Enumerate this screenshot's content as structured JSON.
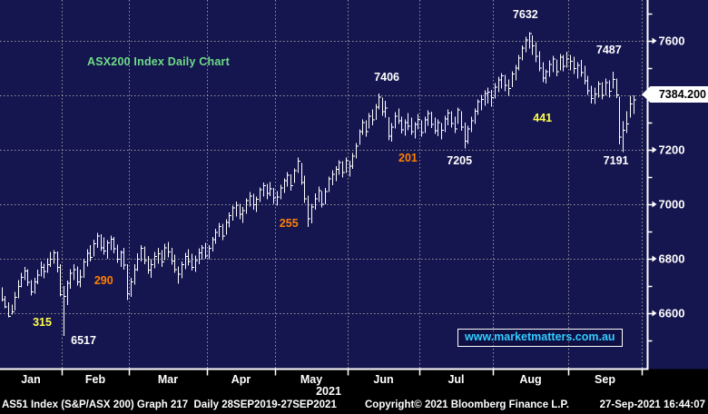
{
  "title": {
    "text": "ASX200 Index Daily Chart"
  },
  "watermark": {
    "text": "www.marketmatters.com.au"
  },
  "price_badge": {
    "label": "7384.200"
  },
  "status_bar": {
    "left": "AS51 Index (S&P/ASX 200) Graph 217  Daily 28SEP2019-27SEP2021",
    "center": "Copyright© 2021 Bloomberg Finance L.P.",
    "right": "27-Sep-2021 16:44:07"
  },
  "theme": {
    "background": "#15154f",
    "panel_black": "#000000",
    "bar_white": "#ffffff",
    "grid_gray": "#9a9a9a",
    "axis_white": "#ffffff",
    "title_green": "#6edc86",
    "annotation_yellow": "#ffff4d",
    "annotation_orange": "#ff8000",
    "link_cyan": "#33ccff",
    "badge_bg": "#ffffff",
    "badge_text": "#000000"
  },
  "chart_data": {
    "type": "bar",
    "subtype": "daily-ohlc-bars",
    "title": "ASX200 Index Daily Chart",
    "last_price": 7384.2,
    "grid": true,
    "legend_position": "none",
    "x_axis": {
      "months": [
        "Jan",
        "Feb",
        "Mar",
        "Apr",
        "May",
        "Jun",
        "Jul",
        "Aug",
        "Sep"
      ],
      "year": "2021",
      "days_per_month": [
        19,
        20,
        23,
        20,
        21,
        22,
        22,
        22,
        19
      ],
      "total_days": 188
    },
    "y_axis": {
      "side": "right",
      "min": 6400,
      "max": 7750,
      "labeled_ticks": [
        7600,
        7400,
        7200,
        7000,
        6800,
        6600
      ],
      "minor_ticks": [
        7700,
        7500,
        7300,
        7100,
        6900,
        6700,
        6500
      ]
    },
    "annotations": [
      {
        "text": "7632",
        "color": "white",
        "day": 156,
        "value": 7698
      },
      {
        "text": "7487",
        "color": "white",
        "day": 180,
        "value": 7568
      },
      {
        "text": "7406",
        "color": "white",
        "day": 114.5,
        "value": 7468
      },
      {
        "text": "7205",
        "color": "white",
        "day": 136.5,
        "value": 7162
      },
      {
        "text": "7191",
        "color": "white",
        "day": 182,
        "value": 7162
      },
      {
        "text": "6517",
        "color": "white",
        "day": 25,
        "value": 6502
      },
      {
        "text": "441",
        "color": "yellow",
        "day": 161,
        "value": 7318
      },
      {
        "text": "201",
        "color": "orange",
        "day": 121,
        "value": 7172
      },
      {
        "text": "255",
        "color": "orange",
        "day": 85.5,
        "value": 6932
      },
      {
        "text": "290",
        "color": "orange",
        "day": 31,
        "value": 6722
      },
      {
        "text": "315",
        "color": "yellow",
        "day": 12.5,
        "value": 6568
      }
    ],
    "bars_hlc": [
      [
        6695,
        6643,
        6652
      ],
      [
        6663,
        6618,
        6625
      ],
      [
        6640,
        6585,
        6590
      ],
      [
        6632,
        6595,
        6607
      ],
      [
        6678,
        6610,
        6660
      ],
      [
        6722,
        6655,
        6700
      ],
      [
        6748,
        6695,
        6733
      ],
      [
        6770,
        6722,
        6757
      ],
      [
        6762,
        6700,
        6715
      ],
      [
        6722,
        6665,
        6680
      ],
      [
        6730,
        6672,
        6716
      ],
      [
        6760,
        6706,
        6742
      ],
      [
        6790,
        6735,
        6770
      ],
      [
        6782,
        6728,
        6755
      ],
      [
        6802,
        6748,
        6780
      ],
      [
        6825,
        6770,
        6800
      ],
      [
        6832,
        6782,
        6824
      ],
      [
        6826,
        6750,
        6770
      ],
      [
        6780,
        6662,
        6670
      ],
      [
        6700,
        6517,
        6663
      ],
      [
        6720,
        6630,
        6712
      ],
      [
        6762,
        6690,
        6748
      ],
      [
        6780,
        6722,
        6762
      ],
      [
        6772,
        6702,
        6717
      ],
      [
        6760,
        6695,
        6735
      ],
      [
        6800,
        6730,
        6790
      ],
      [
        6835,
        6772,
        6821
      ],
      [
        6850,
        6790,
        6807
      ],
      [
        6870,
        6808,
        6856
      ],
      [
        6895,
        6840,
        6885
      ],
      [
        6890,
        6828,
        6842
      ],
      [
        6878,
        6815,
        6830
      ],
      [
        6868,
        6800,
        6860
      ],
      [
        6885,
        6832,
        6873
      ],
      [
        6880,
        6820,
        6838
      ],
      [
        6852,
        6785,
        6800
      ],
      [
        6830,
        6770,
        6825
      ],
      [
        6840,
        6760,
        6778
      ],
      [
        6780,
        6648,
        6673
      ],
      [
        6730,
        6660,
        6717
      ],
      [
        6780,
        6705,
        6762
      ],
      [
        6820,
        6755,
        6800
      ],
      [
        6850,
        6790,
        6840
      ],
      [
        6845,
        6780,
        6795
      ],
      [
        6810,
        6745,
        6760
      ],
      [
        6798,
        6730,
        6780
      ],
      [
        6825,
        6765,
        6810
      ],
      [
        6840,
        6782,
        6820
      ],
      [
        6832,
        6770,
        6790
      ],
      [
        6855,
        6795,
        6842
      ],
      [
        6862,
        6805,
        6827
      ],
      [
        6840,
        6778,
        6793
      ],
      [
        6815,
        6748,
        6762
      ],
      [
        6772,
        6708,
        6745
      ],
      [
        6790,
        6728,
        6780
      ],
      [
        6822,
        6762,
        6810
      ],
      [
        6835,
        6775,
        6792
      ],
      [
        6818,
        6756,
        6770
      ],
      [
        6812,
        6752,
        6795
      ],
      [
        6838,
        6780,
        6824
      ],
      [
        6850,
        6796,
        6842
      ],
      [
        6858,
        6800,
        6812
      ],
      [
        6850,
        6798,
        6840
      ],
      [
        6880,
        6826,
        6872
      ],
      [
        6910,
        6855,
        6898
      ],
      [
        6932,
        6880,
        6920
      ],
      [
        6928,
        6868,
        6885
      ],
      [
        6945,
        6888,
        6935
      ],
      [
        6970,
        6915,
        6960
      ],
      [
        6995,
        6940,
        6988
      ],
      [
        7010,
        6955,
        6998
      ],
      [
        7002,
        6945,
        6965
      ],
      [
        6990,
        6932,
        6978
      ],
      [
        7022,
        6965,
        7015
      ],
      [
        7045,
        6992,
        7032
      ],
      [
        7038,
        6980,
        7000
      ],
      [
        7028,
        6972,
        7020
      ],
      [
        7062,
        7008,
        7055
      ],
      [
        7080,
        7028,
        7070
      ],
      [
        7075,
        7018,
        7042
      ],
      [
        7082,
        7030,
        7058
      ],
      [
        7060,
        7002,
        7025
      ],
      [
        7048,
        6995,
        7028
      ],
      [
        7072,
        7018,
        7062
      ],
      [
        7095,
        7042,
        7088
      ],
      [
        7118,
        7065,
        7108
      ],
      [
        7110,
        7050,
        7070
      ],
      [
        7132,
        7078,
        7125
      ],
      [
        7172,
        7115,
        7160
      ],
      [
        7152,
        7072,
        7082
      ],
      [
        7105,
        7005,
        7022
      ],
      [
        7032,
        6917,
        6948
      ],
      [
        7002,
        6930,
        6992
      ],
      [
        7040,
        6980,
        7022
      ],
      [
        7065,
        7008,
        7052
      ],
      [
        7048,
        6988,
        7002
      ],
      [
        7060,
        7000,
        7048
      ],
      [
        7102,
        7045,
        7095
      ],
      [
        7125,
        7070,
        7112
      ],
      [
        7140,
        7085,
        7130
      ],
      [
        7162,
        7108,
        7155
      ],
      [
        7158,
        7098,
        7118
      ],
      [
        7172,
        7115,
        7162
      ],
      [
        7160,
        7102,
        7142
      ],
      [
        7188,
        7130,
        7178
      ],
      [
        7225,
        7168,
        7215
      ],
      [
        7275,
        7218,
        7268
      ],
      [
        7312,
        7255,
        7302
      ],
      [
        7308,
        7248,
        7268
      ],
      [
        7335,
        7278,
        7325
      ],
      [
        7348,
        7290,
        7312
      ],
      [
        7368,
        7310,
        7358
      ],
      [
        7406,
        7348,
        7395
      ],
      [
        7392,
        7325,
        7342
      ],
      [
        7380,
        7318,
        7355
      ],
      [
        7320,
        7235,
        7252
      ],
      [
        7298,
        7230,
        7285
      ],
      [
        7338,
        7278,
        7325
      ],
      [
        7352,
        7295,
        7308
      ],
      [
        7322,
        7260,
        7275
      ],
      [
        7312,
        7252,
        7302
      ],
      [
        7335,
        7272,
        7288
      ],
      [
        7318,
        7255,
        7268
      ],
      [
        7302,
        7242,
        7295
      ],
      [
        7332,
        7275,
        7313
      ],
      [
        7308,
        7248,
        7265
      ],
      [
        7322,
        7262,
        7312
      ],
      [
        7345,
        7288,
        7335
      ],
      [
        7340,
        7280,
        7295
      ],
      [
        7318,
        7258,
        7272
      ],
      [
        7312,
        7250,
        7302
      ],
      [
        7298,
        7238,
        7273
      ],
      [
        7325,
        7265,
        7315
      ],
      [
        7348,
        7290,
        7336
      ],
      [
        7342,
        7282,
        7298
      ],
      [
        7322,
        7262,
        7278
      ],
      [
        7355,
        7295,
        7348
      ],
      [
        7342,
        7270,
        7285
      ],
      [
        7300,
        7205,
        7234
      ],
      [
        7288,
        7222,
        7278
      ],
      [
        7322,
        7265,
        7308
      ],
      [
        7352,
        7295,
        7344
      ],
      [
        7385,
        7328,
        7378
      ],
      [
        7402,
        7345,
        7386
      ],
      [
        7418,
        7362,
        7408
      ],
      [
        7428,
        7370,
        7414
      ],
      [
        7420,
        7358,
        7393
      ],
      [
        7445,
        7388,
        7432
      ],
      [
        7468,
        7412,
        7458
      ],
      [
        7482,
        7425,
        7474
      ],
      [
        7475,
        7415,
        7438
      ],
      [
        7458,
        7398,
        7427
      ],
      [
        7488,
        7430,
        7480
      ],
      [
        7512,
        7455,
        7502
      ],
      [
        7548,
        7492,
        7538
      ],
      [
        7584,
        7528,
        7575
      ],
      [
        7615,
        7558,
        7605
      ],
      [
        7632,
        7572,
        7628
      ],
      [
        7620,
        7548,
        7583
      ],
      [
        7595,
        7522,
        7545
      ],
      [
        7562,
        7488,
        7502
      ],
      [
        7522,
        7448,
        7465
      ],
      [
        7495,
        7443,
        7488
      ],
      [
        7528,
        7468,
        7515
      ],
      [
        7545,
        7485,
        7535
      ],
      [
        7532,
        7470,
        7488
      ],
      [
        7552,
        7492,
        7542
      ],
      [
        7548,
        7488,
        7508
      ],
      [
        7560,
        7502,
        7535
      ],
      [
        7548,
        7492,
        7527
      ],
      [
        7542,
        7478,
        7500
      ],
      [
        7522,
        7462,
        7512
      ],
      [
        7530,
        7468,
        7485
      ],
      [
        7508,
        7440,
        7455
      ],
      [
        7472,
        7402,
        7418
      ],
      [
        7435,
        7370,
        7390
      ],
      [
        7428,
        7368,
        7407
      ],
      [
        7452,
        7392,
        7443
      ],
      [
        7448,
        7385,
        7402
      ],
      [
        7462,
        7400,
        7448
      ],
      [
        7455,
        7392,
        7417
      ],
      [
        7487,
        7425,
        7460
      ],
      [
        7462,
        7390,
        7404
      ],
      [
        7395,
        7220,
        7248
      ],
      [
        7305,
        7191,
        7274
      ],
      [
        7342,
        7262,
        7297
      ],
      [
        7398,
        7318,
        7370
      ],
      [
        7400,
        7332,
        7384.2
      ]
    ]
  }
}
